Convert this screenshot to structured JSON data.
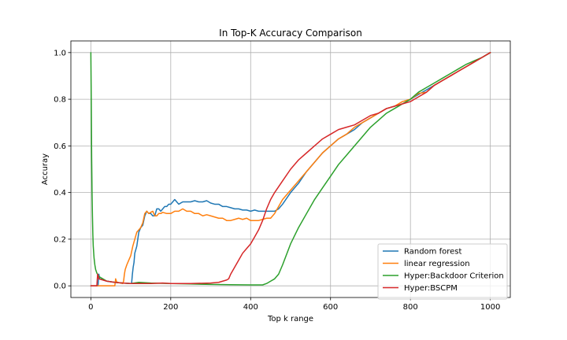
{
  "chart_data": {
    "type": "line",
    "title": "In Top-K Accuracy Comparison",
    "xlabel": "Top k range",
    "ylabel": "Accuray",
    "xlim": [
      -50,
      1050
    ],
    "ylim": [
      -0.05,
      1.05
    ],
    "xticks": [
      0,
      200,
      400,
      600,
      800,
      1000
    ],
    "yticks": [
      0.0,
      0.2,
      0.4,
      0.6,
      0.8,
      1.0
    ],
    "xtick_labels": [
      "0",
      "200",
      "400",
      "600",
      "800",
      "1000"
    ],
    "ytick_labels": [
      "0.0",
      "0.2",
      "0.4",
      "0.6",
      "0.8",
      "1.0"
    ],
    "grid": true,
    "legend_position": "lower-right",
    "series": [
      {
        "name": "Random forest",
        "color": "#1f77b4",
        "x": [
          0,
          18,
          20,
          22,
          40,
          60,
          80,
          100,
          102,
          104,
          106,
          108,
          110,
          115,
          120,
          125,
          130,
          135,
          140,
          145,
          150,
          155,
          160,
          165,
          170,
          175,
          180,
          185,
          190,
          195,
          200,
          205,
          210,
          215,
          220,
          230,
          240,
          250,
          260,
          270,
          280,
          290,
          300,
          310,
          320,
          330,
          340,
          350,
          360,
          370,
          380,
          390,
          400,
          410,
          420,
          430,
          440,
          450,
          460,
          470,
          480,
          500,
          520,
          540,
          560,
          580,
          600,
          620,
          640,
          660,
          680,
          700,
          720,
          740,
          760,
          780,
          800,
          820,
          840,
          860,
          880,
          900,
          920,
          940,
          960,
          980,
          1000
        ],
        "y": [
          0.0,
          0.0,
          0.05,
          0.03,
          0.02,
          0.015,
          0.012,
          0.01,
          0.01,
          0.05,
          0.08,
          0.1,
          0.14,
          0.17,
          0.23,
          0.25,
          0.26,
          0.3,
          0.32,
          0.31,
          0.31,
          0.3,
          0.3,
          0.33,
          0.33,
          0.32,
          0.33,
          0.34,
          0.34,
          0.35,
          0.35,
          0.36,
          0.37,
          0.36,
          0.35,
          0.36,
          0.36,
          0.36,
          0.365,
          0.36,
          0.36,
          0.365,
          0.355,
          0.35,
          0.35,
          0.34,
          0.34,
          0.335,
          0.33,
          0.33,
          0.325,
          0.325,
          0.32,
          0.325,
          0.32,
          0.32,
          0.32,
          0.32,
          0.32,
          0.33,
          0.35,
          0.4,
          0.44,
          0.49,
          0.53,
          0.57,
          0.6,
          0.63,
          0.65,
          0.67,
          0.7,
          0.72,
          0.74,
          0.76,
          0.77,
          0.78,
          0.8,
          0.82,
          0.84,
          0.86,
          0.88,
          0.9,
          0.92,
          0.94,
          0.96,
          0.98,
          1.0
        ]
      },
      {
        "name": "linear regression",
        "color": "#ff7f0e",
        "x": [
          0,
          60,
          62,
          64,
          66,
          80,
          82,
          84,
          86,
          88,
          90,
          95,
          100,
          105,
          110,
          115,
          120,
          125,
          130,
          135,
          140,
          145,
          150,
          155,
          160,
          165,
          170,
          175,
          180,
          190,
          200,
          210,
          220,
          230,
          240,
          250,
          260,
          270,
          280,
          290,
          300,
          310,
          320,
          330,
          340,
          350,
          360,
          370,
          380,
          390,
          400,
          410,
          420,
          430,
          440,
          450,
          460,
          470,
          480,
          500,
          520,
          540,
          560,
          580,
          600,
          620,
          640,
          660,
          680,
          700,
          720,
          740,
          760,
          780,
          800,
          820,
          840,
          860,
          880,
          900,
          920,
          940,
          960,
          980,
          1000
        ],
        "y": [
          0.0,
          0.0,
          0.03,
          0.02,
          0.015,
          0.01,
          0.02,
          0.05,
          0.07,
          0.08,
          0.09,
          0.11,
          0.13,
          0.17,
          0.2,
          0.23,
          0.24,
          0.25,
          0.27,
          0.31,
          0.32,
          0.31,
          0.315,
          0.32,
          0.3,
          0.3,
          0.31,
          0.31,
          0.315,
          0.31,
          0.31,
          0.32,
          0.32,
          0.33,
          0.32,
          0.32,
          0.31,
          0.31,
          0.3,
          0.305,
          0.3,
          0.295,
          0.29,
          0.29,
          0.28,
          0.28,
          0.285,
          0.29,
          0.285,
          0.29,
          0.28,
          0.28,
          0.28,
          0.285,
          0.29,
          0.29,
          0.31,
          0.34,
          0.37,
          0.41,
          0.45,
          0.49,
          0.53,
          0.57,
          0.6,
          0.63,
          0.65,
          0.68,
          0.7,
          0.72,
          0.74,
          0.76,
          0.77,
          0.79,
          0.8,
          0.825,
          0.83,
          0.86,
          0.88,
          0.9,
          0.92,
          0.94,
          0.96,
          0.98,
          1.0
        ]
      },
      {
        "name": "Hyper:Backdoor Criterion",
        "color": "#2ca02c",
        "x": [
          0,
          1,
          2,
          3,
          4,
          5,
          6,
          8,
          10,
          12,
          15,
          20,
          30,
          40,
          60,
          80,
          100,
          120,
          150,
          200,
          250,
          300,
          350,
          400,
          430,
          440,
          450,
          460,
          470,
          480,
          500,
          520,
          540,
          560,
          580,
          600,
          620,
          640,
          660,
          680,
          700,
          720,
          740,
          760,
          780,
          800,
          820,
          840,
          860,
          880,
          900,
          920,
          940,
          960,
          980,
          1000
        ],
        "y": [
          1.0,
          0.8,
          0.55,
          0.4,
          0.3,
          0.22,
          0.17,
          0.12,
          0.09,
          0.07,
          0.055,
          0.04,
          0.03,
          0.02,
          0.015,
          0.012,
          0.01,
          0.015,
          0.012,
          0.01,
          0.008,
          0.006,
          0.005,
          0.004,
          0.004,
          0.01,
          0.02,
          0.03,
          0.05,
          0.09,
          0.18,
          0.25,
          0.31,
          0.37,
          0.42,
          0.47,
          0.52,
          0.56,
          0.6,
          0.64,
          0.68,
          0.71,
          0.74,
          0.76,
          0.78,
          0.8,
          0.83,
          0.85,
          0.87,
          0.89,
          0.91,
          0.93,
          0.95,
          0.965,
          0.98,
          1.0
        ]
      },
      {
        "name": "Hyper:BSCPM",
        "color": "#d62728",
        "x": [
          0,
          15,
          17,
          20,
          30,
          40,
          60,
          80,
          100,
          120,
          150,
          180,
          200,
          250,
          300,
          320,
          330,
          340,
          345,
          350,
          360,
          370,
          380,
          390,
          400,
          410,
          420,
          430,
          440,
          450,
          460,
          480,
          500,
          520,
          540,
          560,
          580,
          600,
          620,
          640,
          660,
          680,
          700,
          720,
          740,
          760,
          780,
          800,
          820,
          840,
          860,
          880,
          900,
          920,
          940,
          960,
          980,
          1000
        ],
        "y": [
          0.0,
          0.0,
          0.05,
          0.03,
          0.025,
          0.02,
          0.015,
          0.012,
          0.01,
          0.01,
          0.01,
          0.012,
          0.01,
          0.01,
          0.012,
          0.015,
          0.02,
          0.025,
          0.03,
          0.05,
          0.08,
          0.11,
          0.14,
          0.16,
          0.18,
          0.21,
          0.24,
          0.28,
          0.33,
          0.37,
          0.4,
          0.45,
          0.5,
          0.54,
          0.57,
          0.6,
          0.63,
          0.65,
          0.67,
          0.68,
          0.69,
          0.71,
          0.73,
          0.74,
          0.76,
          0.77,
          0.78,
          0.79,
          0.81,
          0.83,
          0.86,
          0.88,
          0.9,
          0.92,
          0.94,
          0.96,
          0.98,
          1.0
        ]
      }
    ]
  }
}
